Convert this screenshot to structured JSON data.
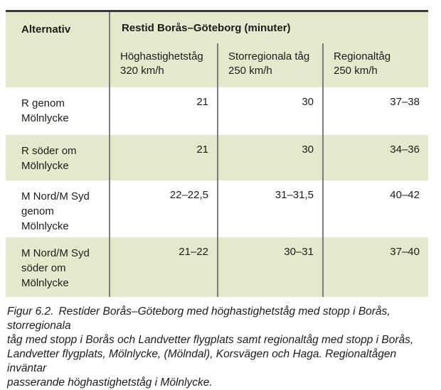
{
  "colors": {
    "row-shade": "#e5e9cb",
    "rule-heavy": "#3a3a3a",
    "rule-light": "#7d7d7d",
    "text": "#1c1c1c"
  },
  "table": {
    "header": {
      "col0": "Alternativ",
      "span": "Restid Borås–Göteborg (minuter)",
      "sub": [
        "Höghastighetståg\n320 km/h",
        "Storregionala tåg\n250 km/h",
        "Regionaltåg\n250 km/h"
      ]
    },
    "rows": [
      {
        "label": "R genom\nMölnlycke",
        "values": [
          "21",
          "30",
          "37–38"
        ]
      },
      {
        "label": "R söder om\nMölnlycke",
        "values": [
          "21",
          "30",
          "34–36"
        ]
      },
      {
        "label": "M Nord/M Syd\ngenom\nMölnlycke",
        "values": [
          "22–22,5",
          "31–31,5",
          "40–42"
        ]
      },
      {
        "label": "M Nord/M Syd\nsöder om\nMölnlycke",
        "values": [
          "21–22",
          "30–31",
          "37–40"
        ]
      }
    ]
  },
  "caption": {
    "label": "Figur 6.2.",
    "text": "Restider Borås–Göteborg med höghastighetståg med stopp i Borås, storregionala\ntåg med stopp i Borås och Landvetter flygplats samt regionaltåg med stopp i Borås,\nLandvetter flygplats, Mölnlycke, (Mölndal), Korsvägen och Haga. Regionaltågen inväntar\npasserande höghastighetståg i Mölnlycke."
  }
}
